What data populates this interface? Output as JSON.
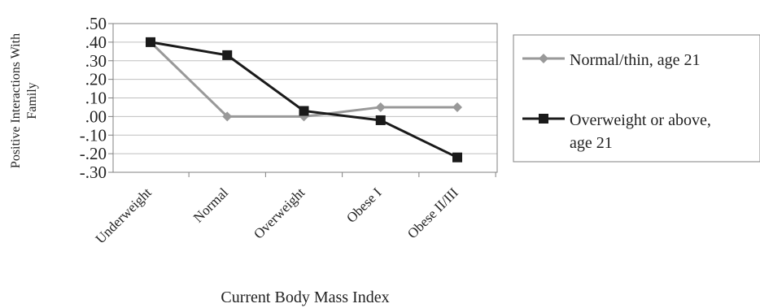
{
  "chart_data": {
    "type": "line",
    "categories": [
      "Underweight",
      "Normal",
      "Overweight",
      "Obese I",
      "Obese II/III"
    ],
    "series": [
      {
        "name": "Normal/thin, age 21",
        "values": [
          0.4,
          0.0,
          0.0,
          0.05,
          0.05
        ],
        "color": "#999999",
        "marker": "diamond"
      },
      {
        "name": "Overweight or above, age 21",
        "values": [
          0.4,
          0.33,
          0.03,
          -0.02,
          -0.22
        ],
        "color": "#1a1a1a",
        "marker": "square"
      }
    ],
    "legend_lines": [
      [
        "Normal/thin, age 21"
      ],
      [
        "Overweight or above,",
        "age 21"
      ]
    ],
    "ylim": [
      -0.3,
      0.5
    ],
    "yticks": [
      0.5,
      0.4,
      0.3,
      0.2,
      0.1,
      0.0,
      -0.1,
      -0.2,
      -0.3
    ],
    "ytick_labels": [
      ".50",
      ".40",
      ".30",
      ".20",
      ".10",
      ".00",
      "-.10",
      "-.20",
      "-.30"
    ],
    "ylabel_lines": [
      "Positive Interactions With",
      "Family"
    ],
    "xlabel": "Current Body Mass Index",
    "grid": true,
    "legend_position": "right"
  }
}
